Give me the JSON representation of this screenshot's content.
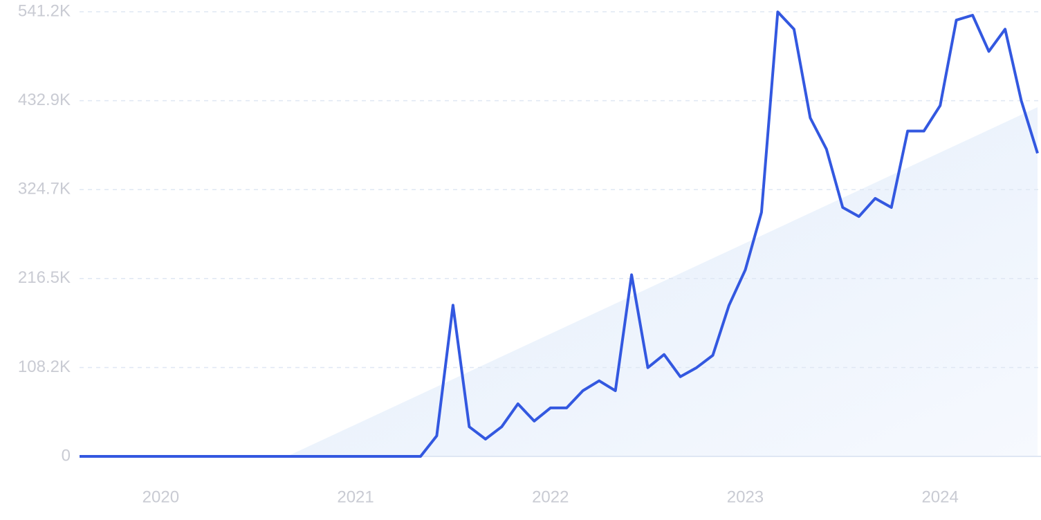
{
  "chart_data": {
    "type": "line",
    "categories": [
      null,
      null,
      null,
      null,
      null,
      "2020",
      null,
      null,
      null,
      null,
      null,
      null,
      null,
      null,
      null,
      null,
      null,
      "2021",
      null,
      null,
      null,
      null,
      null,
      null,
      null,
      null,
      null,
      null,
      null,
      "2022",
      null,
      null,
      null,
      null,
      null,
      null,
      null,
      null,
      null,
      null,
      null,
      "2023",
      null,
      null,
      null,
      null,
      null,
      null,
      null,
      null,
      null,
      null,
      null,
      "2024",
      null,
      null,
      null,
      null,
      null,
      null
    ],
    "series": [
      {
        "color": "#3358e0",
        "values": [
          0,
          0,
          0,
          0,
          0,
          0,
          0,
          0,
          0,
          0,
          0,
          0,
          0,
          0,
          0,
          0,
          0,
          0,
          0,
          0,
          0,
          0,
          25000,
          184000,
          36000,
          21000,
          36000,
          64000,
          43000,
          59000,
          59000,
          80000,
          92000,
          80000,
          221000,
          108000,
          124000,
          97000,
          108000,
          123000,
          184000,
          227000,
          297000,
          541000,
          520000,
          412000,
          374000,
          303000,
          292000,
          314000,
          303000,
          396000,
          396000,
          427000,
          531000,
          537000,
          493000,
          520000,
          433000,
          369000
        ]
      }
    ],
    "ylim": [
      0,
      541200
    ],
    "yticks": [
      0,
      {
        "value": 108200,
        "label": "108.2K"
      },
      {
        "value": 216500,
        "label": "216.5K"
      },
      {
        "value": 324700,
        "label": "324.7K"
      },
      {
        "value": 432900,
        "label": "432.9K"
      },
      {
        "value": 541200,
        "label": "541.2K"
      }
    ],
    "grid": true
  }
}
